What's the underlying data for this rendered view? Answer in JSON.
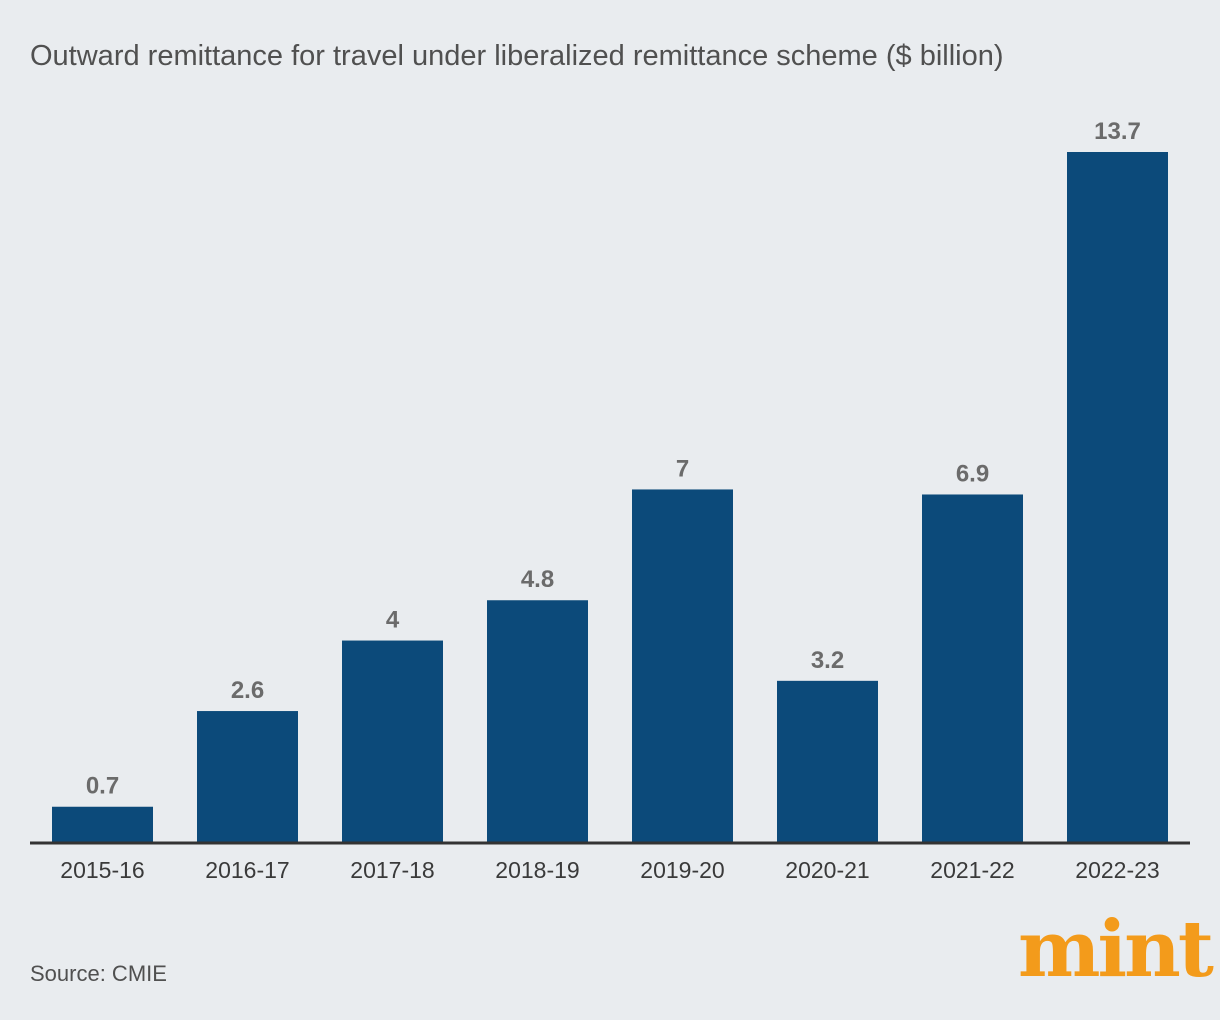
{
  "chart_data": {
    "type": "bar",
    "title": "Outward remittance for travel under liberalized remittance scheme ($ billion)",
    "categories": [
      "2015-16",
      "2016-17",
      "2017-18",
      "2018-19",
      "2019-20",
      "2020-21",
      "2021-22",
      "2022-23"
    ],
    "values": [
      0.7,
      2.6,
      4,
      4.8,
      7,
      3.2,
      6.9,
      13.7
    ],
    "value_labels": [
      "0.7",
      "2.6",
      "4",
      "4.8",
      "7",
      "3.2",
      "6.9",
      "13.7"
    ],
    "xlabel": "",
    "ylabel": "",
    "ylim": [
      0,
      13.7
    ],
    "grid": false,
    "legend": "none"
  },
  "colors": {
    "background": "#e9ecef",
    "bar": "#0c4a7a",
    "value_label": "#6b6b6b",
    "axis": "#333333",
    "text": "#505050",
    "brand": "#f39b1b"
  },
  "source": "Source: CMIE",
  "brand": {
    "name": "mint"
  }
}
